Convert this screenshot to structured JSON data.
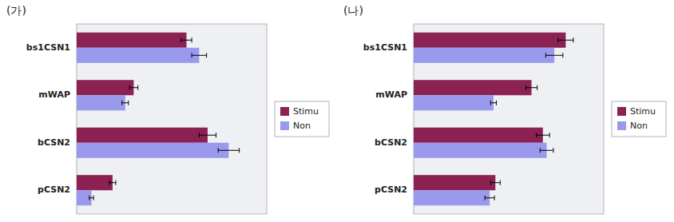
{
  "chart_data": [
    {
      "type": "bar",
      "orientation": "horizontal",
      "title": "(가)",
      "categories": [
        "bs1CSN1",
        "mWAP",
        "bCSN2",
        "pCSN2"
      ],
      "series": [
        {
          "name": "Stimu",
          "color": "#8B2252",
          "values": [
            52,
            27,
            62,
            17
          ],
          "errors": [
            2.5,
            2.0,
            4.0,
            1.5
          ]
        },
        {
          "name": "Non",
          "color": "#9999EE",
          "values": [
            58,
            23,
            72,
            7
          ],
          "errors": [
            3.5,
            1.5,
            5.0,
            1.0
          ]
        }
      ],
      "xlim": [
        0,
        90
      ],
      "tick_labels": "y",
      "grid": false,
      "legend": "right"
    },
    {
      "type": "bar",
      "orientation": "horizontal",
      "title": "(나)",
      "categories": [
        "bs1CSN1",
        "mWAP",
        "bCSN2",
        "pCSN2"
      ],
      "series": [
        {
          "name": "Stimu",
          "color": "#8B2252",
          "values": [
            80,
            62,
            68,
            43
          ],
          "errors": [
            4.0,
            3.0,
            3.5,
            2.5
          ]
        },
        {
          "name": "Non",
          "color": "#9999EE",
          "values": [
            74,
            42,
            70,
            40
          ],
          "errors": [
            4.5,
            1.5,
            3.5,
            2.5
          ]
        }
      ],
      "xlim": [
        0,
        100
      ],
      "tick_labels": "y",
      "grid": false,
      "legend": "right"
    }
  ]
}
